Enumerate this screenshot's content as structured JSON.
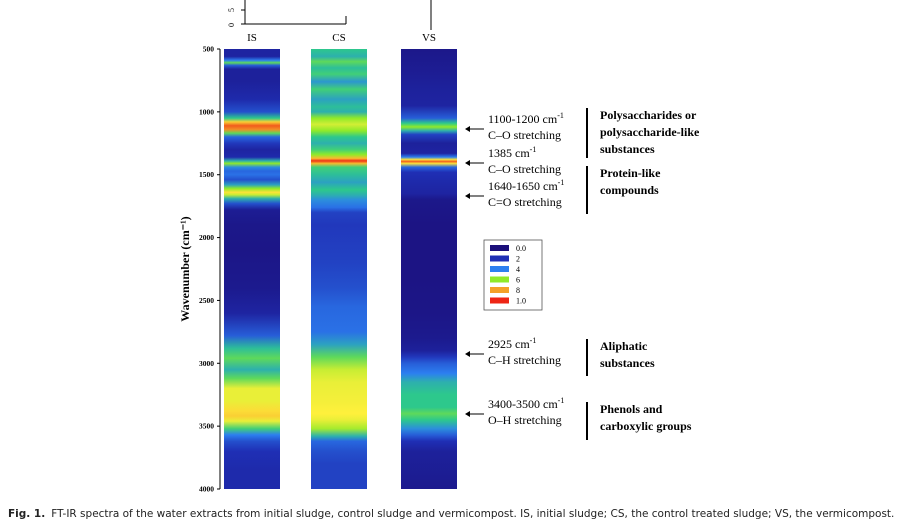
{
  "figure": {
    "caption_label": "Fig. 1.",
    "caption_text": "FT-IR spectra of the water extracts from initial sludge, control sludge and vermicompost. IS, initial sludge; CS, the control treated sludge; VS, the vermicompost."
  },
  "chart_data": {
    "type": "heatmap",
    "ylabel": "Wavenumber (cm⁻¹)",
    "yrange": [
      500,
      4000
    ],
    "yticks": [
      500,
      1000,
      1500,
      2000,
      2500,
      3000,
      3500,
      4000
    ],
    "top_axis_ticks": [
      "5",
      "0"
    ],
    "columns": [
      {
        "name": "IS",
        "bands": [
          [
            500,
            0.12
          ],
          [
            560,
            0.12
          ],
          [
            590,
            0.35
          ],
          [
            610,
            0.55
          ],
          [
            630,
            0.28
          ],
          [
            660,
            0.1
          ],
          [
            760,
            0.1
          ],
          [
            900,
            0.15
          ],
          [
            1000,
            0.25
          ],
          [
            1050,
            0.5
          ],
          [
            1080,
            0.75
          ],
          [
            1110,
            0.92
          ],
          [
            1140,
            0.85
          ],
          [
            1170,
            0.55
          ],
          [
            1200,
            0.3
          ],
          [
            1250,
            0.2
          ],
          [
            1300,
            0.12
          ],
          [
            1360,
            0.15
          ],
          [
            1390,
            0.45
          ],
          [
            1410,
            0.6
          ],
          [
            1440,
            0.38
          ],
          [
            1470,
            0.3
          ],
          [
            1500,
            0.32
          ],
          [
            1540,
            0.25
          ],
          [
            1580,
            0.42
          ],
          [
            1610,
            0.6
          ],
          [
            1640,
            0.72
          ],
          [
            1660,
            0.65
          ],
          [
            1690,
            0.45
          ],
          [
            1730,
            0.25
          ],
          [
            1780,
            0.08
          ],
          [
            1900,
            0.05
          ],
          [
            2100,
            0.04
          ],
          [
            2400,
            0.06
          ],
          [
            2600,
            0.12
          ],
          [
            2780,
            0.28
          ],
          [
            2880,
            0.48
          ],
          [
            2960,
            0.55
          ],
          [
            3050,
            0.45
          ],
          [
            3120,
            0.55
          ],
          [
            3200,
            0.68
          ],
          [
            3300,
            0.68
          ],
          [
            3380,
            0.73
          ],
          [
            3420,
            0.75
          ],
          [
            3460,
            0.68
          ],
          [
            3520,
            0.52
          ],
          [
            3570,
            0.35
          ],
          [
            3620,
            0.25
          ],
          [
            3700,
            0.18
          ],
          [
            3850,
            0.15
          ],
          [
            4000,
            0.15
          ]
        ]
      },
      {
        "name": "CS",
        "bands": [
          [
            500,
            0.5
          ],
          [
            560,
            0.45
          ],
          [
            600,
            0.55
          ],
          [
            650,
            0.48
          ],
          [
            700,
            0.52
          ],
          [
            760,
            0.4
          ],
          [
            820,
            0.52
          ],
          [
            900,
            0.42
          ],
          [
            960,
            0.48
          ],
          [
            1000,
            0.45
          ],
          [
            1050,
            0.6
          ],
          [
            1100,
            0.66
          ],
          [
            1150,
            0.6
          ],
          [
            1200,
            0.5
          ],
          [
            1250,
            0.45
          ],
          [
            1300,
            0.52
          ],
          [
            1340,
            0.6
          ],
          [
            1370,
            0.78
          ],
          [
            1390,
            0.98
          ],
          [
            1410,
            0.78
          ],
          [
            1440,
            0.52
          ],
          [
            1500,
            0.48
          ],
          [
            1560,
            0.42
          ],
          [
            1620,
            0.5
          ],
          [
            1660,
            0.45
          ],
          [
            1700,
            0.38
          ],
          [
            1760,
            0.32
          ],
          [
            1800,
            0.22
          ],
          [
            1900,
            0.2
          ],
          [
            2200,
            0.22
          ],
          [
            2400,
            0.25
          ],
          [
            2550,
            0.3
          ],
          [
            2750,
            0.32
          ],
          [
            2850,
            0.42
          ],
          [
            2950,
            0.55
          ],
          [
            3050,
            0.65
          ],
          [
            3150,
            0.68
          ],
          [
            3300,
            0.69
          ],
          [
            3400,
            0.7
          ],
          [
            3450,
            0.68
          ],
          [
            3520,
            0.62
          ],
          [
            3580,
            0.45
          ],
          [
            3620,
            0.3
          ],
          [
            3700,
            0.25
          ],
          [
            3800,
            0.22
          ],
          [
            4000,
            0.22
          ]
        ]
      },
      {
        "name": "VS",
        "bands": [
          [
            500,
            0.05
          ],
          [
            700,
            0.08
          ],
          [
            800,
            0.1
          ],
          [
            950,
            0.12
          ],
          [
            1050,
            0.28
          ],
          [
            1090,
            0.5
          ],
          [
            1120,
            0.6
          ],
          [
            1150,
            0.45
          ],
          [
            1180,
            0.22
          ],
          [
            1250,
            0.1
          ],
          [
            1330,
            0.12
          ],
          [
            1360,
            0.35
          ],
          [
            1380,
            0.72
          ],
          [
            1395,
            0.92
          ],
          [
            1410,
            0.72
          ],
          [
            1440,
            0.3
          ],
          [
            1480,
            0.18
          ],
          [
            1550,
            0.15
          ],
          [
            1650,
            0.12
          ],
          [
            1700,
            0.05
          ],
          [
            1900,
            0.03
          ],
          [
            2300,
            0.03
          ],
          [
            2600,
            0.04
          ],
          [
            2800,
            0.06
          ],
          [
            2900,
            0.1
          ],
          [
            2950,
            0.2
          ],
          [
            3000,
            0.28
          ],
          [
            3080,
            0.35
          ],
          [
            3150,
            0.45
          ],
          [
            3250,
            0.5
          ],
          [
            3350,
            0.5
          ],
          [
            3400,
            0.55
          ],
          [
            3450,
            0.5
          ],
          [
            3520,
            0.38
          ],
          [
            3570,
            0.28
          ],
          [
            3620,
            0.18
          ],
          [
            3700,
            0.1
          ],
          [
            4000,
            0.06
          ]
        ]
      }
    ],
    "legend": {
      "position": "right-middle",
      "entries": [
        {
          "label": "0.0",
          "color": "#1b0f7a"
        },
        {
          "label": "2",
          "color": "#1f2fb5"
        },
        {
          "label": "4",
          "color": "#2c7ff0"
        },
        {
          "label": "6",
          "color": "#8fea2a"
        },
        {
          "label": "8",
          "color": "#f4a128"
        },
        {
          "label": "1.0",
          "color": "#ee2515"
        }
      ]
    },
    "annotations": [
      {
        "wavenumber": 1130,
        "line1": "1100-1200 cm",
        "line1_sup": "-1",
        "line2": "C–O stretching",
        "group": "Polysaccharides or polysaccharide-like substances"
      },
      {
        "wavenumber": 1385,
        "line1": "1385 cm",
        "line1_sup": "-1",
        "line2": "C–O stretching",
        "group": ""
      },
      {
        "wavenumber": 1650,
        "line1": "1640-1650 cm",
        "line1_sup": "-1",
        "line2": "C=O stretching",
        "group": "Protein-like compounds"
      },
      {
        "wavenumber": 2925,
        "line1": "2925 cm",
        "line1_sup": "-1",
        "line2": "C–H stretching",
        "group": "Aliphatic substances"
      },
      {
        "wavenumber": 3450,
        "line1": "3400-3500 cm",
        "line1_sup": "-1",
        "line2": "O–H stretching",
        "group": "Phenols and carboxylic groups"
      }
    ],
    "groups": [
      {
        "lines": [
          "Polysaccharides or",
          "polysaccharide-like",
          "substances"
        ],
        "range": [
          1000,
          1340
        ]
      },
      {
        "lines": [
          "Protein-like",
          "compounds"
        ],
        "range": [
          1410,
          1730
        ]
      },
      {
        "lines": [
          "Aliphatic",
          "substances"
        ],
        "range": [
          2830,
          3080
        ]
      },
      {
        "lines": [
          "Phenols and",
          "carboxylic groups"
        ],
        "range": [
          3330,
          3600
        ]
      }
    ],
    "colors": {
      "low": "#1b0f7a",
      "high": "#ee2515"
    }
  }
}
